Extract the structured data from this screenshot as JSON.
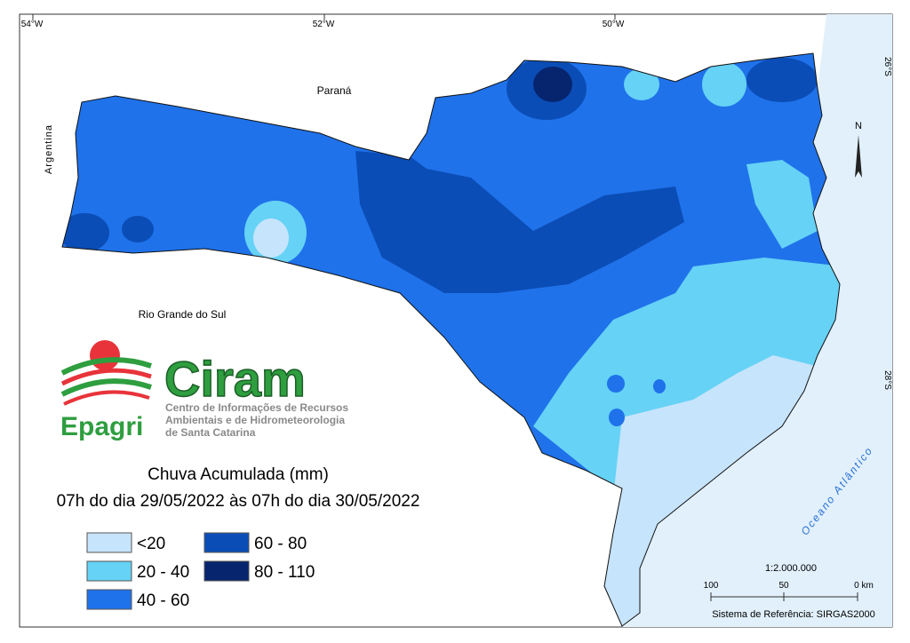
{
  "map": {
    "graticule": {
      "longitudes": [
        "54°W",
        "52°W",
        "50°W"
      ],
      "latitudes": [
        "26°S",
        "28°S"
      ]
    },
    "places": {
      "parana": "Paraná",
      "argentina": "Argentina",
      "rio_grande": "Rio Grande do Sul",
      "ocean": "Oceano Atlântico"
    },
    "north": "N"
  },
  "logo": {
    "name": "Ciram",
    "brand": "Epagri",
    "lines": [
      "Centro de Informações de Recursos",
      "Ambientais e de Hidrometeorologia",
      "de Santa Catarina"
    ]
  },
  "title": "Chuva Acumulada (mm)",
  "subtitle": "07h do dia 29/05/2022 às 07h do dia 30/05/2022",
  "legend": [
    {
      "label": "<20",
      "color": "#c6e4fb"
    },
    {
      "label": "20 - 40",
      "color": "#66d2f5"
    },
    {
      "label": "40 - 60",
      "color": "#1f72ea"
    },
    {
      "label": "60 - 80",
      "color": "#0b4db6"
    },
    {
      "label": "80 - 110",
      "color": "#07256e"
    }
  ],
  "scale": {
    "ratio": "1:2.000.000",
    "ticks": [
      "100",
      "50",
      "0 km"
    ],
    "reference": "Sistema de Referência: SIRGAS2000"
  }
}
